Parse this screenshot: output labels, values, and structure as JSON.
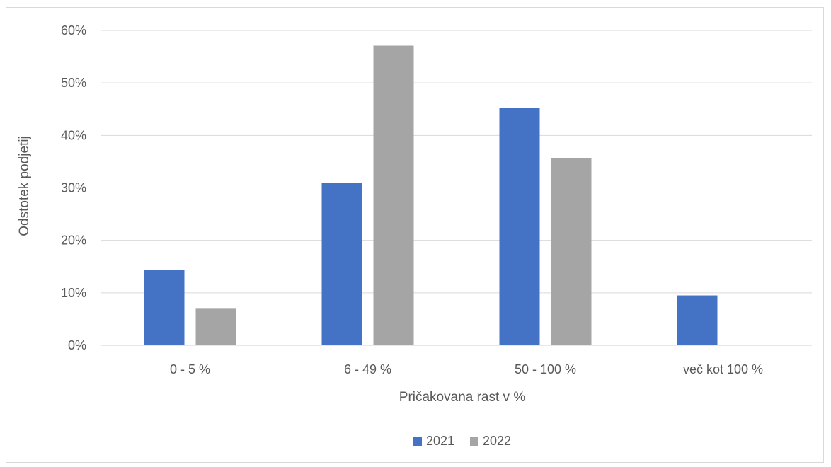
{
  "chart_data": {
    "type": "bar",
    "title": "",
    "xlabel": "Pričakovana rast v %",
    "ylabel": "Odstotek podjetij",
    "categories": [
      "0 - 5 %",
      "6 - 49 %",
      "50 - 100 %",
      "več kot 100 %"
    ],
    "series": [
      {
        "name": "2021",
        "color": "#4472c4",
        "values": [
          14.3,
          31.0,
          45.2,
          9.5
        ]
      },
      {
        "name": "2022",
        "color": "#a5a5a5",
        "values": [
          7.1,
          57.1,
          35.7,
          0
        ]
      }
    ],
    "ylim": [
      0,
      60
    ],
    "yticks": [
      0,
      10,
      20,
      30,
      40,
      50,
      60
    ],
    "ytick_labels": [
      "0%",
      "10%",
      "20%",
      "30%",
      "40%",
      "50%",
      "60%"
    ],
    "grid": true,
    "legend_position": "bottom-center"
  }
}
